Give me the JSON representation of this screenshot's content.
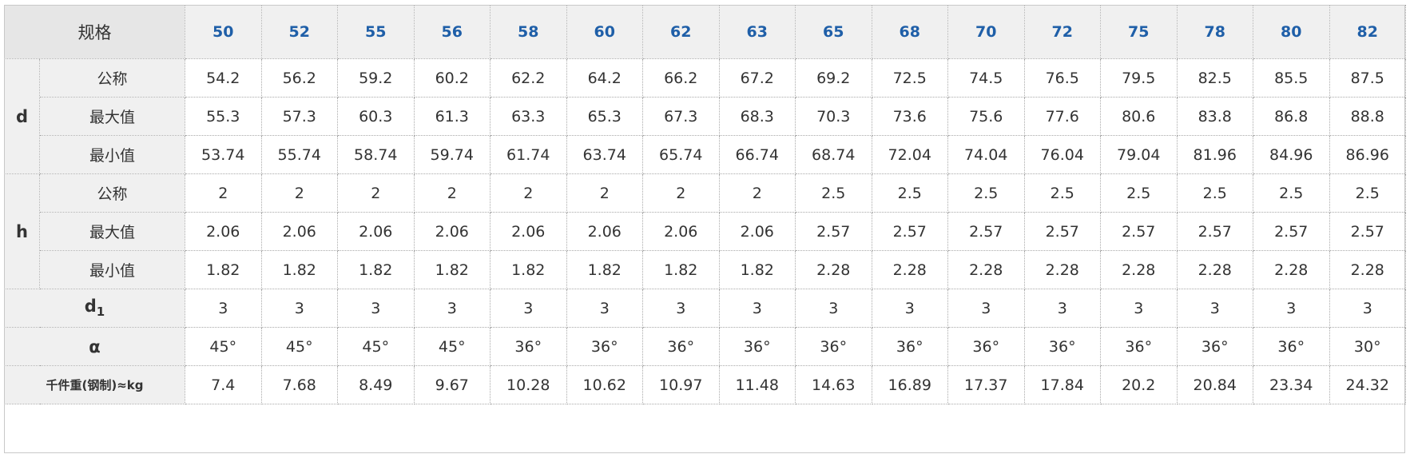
{
  "table": {
    "corner_label": "规格",
    "sizes": [
      "50",
      "52",
      "55",
      "56",
      "58",
      "60",
      "62",
      "63",
      "65",
      "68",
      "70",
      "72",
      "75",
      "78",
      "80",
      "82"
    ],
    "groups": [
      {
        "label": "d",
        "rows": [
          {
            "label": "公称",
            "values": [
              "54.2",
              "56.2",
              "59.2",
              "60.2",
              "62.2",
              "64.2",
              "66.2",
              "67.2",
              "69.2",
              "72.5",
              "74.5",
              "76.5",
              "79.5",
              "82.5",
              "85.5",
              "87.5"
            ]
          },
          {
            "label": "最大值",
            "values": [
              "55.3",
              "57.3",
              "60.3",
              "61.3",
              "63.3",
              "65.3",
              "67.3",
              "68.3",
              "70.3",
              "73.6",
              "75.6",
              "77.6",
              "80.6",
              "83.8",
              "86.8",
              "88.8"
            ]
          },
          {
            "label": "最小值",
            "values": [
              "53.74",
              "55.74",
              "58.74",
              "59.74",
              "61.74",
              "63.74",
              "65.74",
              "66.74",
              "68.74",
              "72.04",
              "74.04",
              "76.04",
              "79.04",
              "81.96",
              "84.96",
              "86.96"
            ]
          }
        ]
      },
      {
        "label": "h",
        "rows": [
          {
            "label": "公称",
            "values": [
              "2",
              "2",
              "2",
              "2",
              "2",
              "2",
              "2",
              "2",
              "2.5",
              "2.5",
              "2.5",
              "2.5",
              "2.5",
              "2.5",
              "2.5",
              "2.5"
            ]
          },
          {
            "label": "最大值",
            "values": [
              "2.06",
              "2.06",
              "2.06",
              "2.06",
              "2.06",
              "2.06",
              "2.06",
              "2.06",
              "2.57",
              "2.57",
              "2.57",
              "2.57",
              "2.57",
              "2.57",
              "2.57",
              "2.57"
            ]
          },
          {
            "label": "最小值",
            "values": [
              "1.82",
              "1.82",
              "1.82",
              "1.82",
              "1.82",
              "1.82",
              "1.82",
              "1.82",
              "2.28",
              "2.28",
              "2.28",
              "2.28",
              "2.28",
              "2.28",
              "2.28",
              "2.28"
            ]
          }
        ]
      }
    ],
    "single_rows": [
      {
        "label": "d",
        "label_sub": "1",
        "values": [
          "3",
          "3",
          "3",
          "3",
          "3",
          "3",
          "3",
          "3",
          "3",
          "3",
          "3",
          "3",
          "3",
          "3",
          "3",
          "3"
        ]
      },
      {
        "label": "α",
        "values": [
          "45°",
          "45°",
          "45°",
          "45°",
          "36°",
          "36°",
          "36°",
          "36°",
          "36°",
          "36°",
          "36°",
          "36°",
          "36°",
          "36°",
          "36°",
          "30°"
        ]
      },
      {
        "label": "千件重(钢制)≈kg",
        "small": true,
        "values": [
          "7.4",
          "7.68",
          "8.49",
          "9.67",
          "10.28",
          "10.62",
          "10.97",
          "11.48",
          "14.63",
          "16.89",
          "17.37",
          "17.84",
          "20.2",
          "20.84",
          "23.34",
          "24.32"
        ]
      }
    ]
  }
}
